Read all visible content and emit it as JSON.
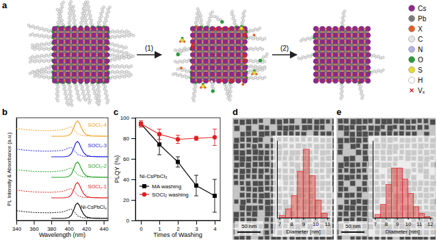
{
  "diagram": {
    "panel_label": "a",
    "steps": [
      "(1)",
      "(2)"
    ],
    "legend": [
      {
        "label": "Cs",
        "color": "#8b2a8b"
      },
      {
        "label": "Pb",
        "color": "#7a7a7a"
      },
      {
        "label": "X",
        "color": "#e0602a"
      },
      {
        "label": "C",
        "color": "#e6e6e6"
      },
      {
        "label": "N",
        "color": "#b4b4e6"
      },
      {
        "label": "O",
        "color": "#2e9a3e"
      },
      {
        "label": "S",
        "color": "#e6dc30"
      },
      {
        "label": "H",
        "color": "#ffffff"
      },
      {
        "label": "Vₓ",
        "color": "#e02020"
      }
    ]
  },
  "chart_data": [
    {
      "type": "line",
      "panel_label": "b",
      "xlabel": "Wavelength (nm)",
      "ylabel": "PL Intensity & Absorbance (a.u.)",
      "xlim": [
        340,
        445
      ],
      "xticks": [
        340,
        360,
        380,
        400,
        420,
        440
      ],
      "ylim": [
        0,
        10
      ],
      "tick_labels": "x",
      "series": [
        {
          "name": "Ni-CsPbCl₃",
          "color": "#000000",
          "abs_x": [
            340,
            350,
            360,
            370,
            380,
            390,
            395,
            400,
            403,
            406,
            410,
            415,
            420,
            430,
            445
          ],
          "abs_values": [
            0.95,
            0.85,
            0.78,
            0.75,
            0.75,
            0.8,
            0.88,
            1.05,
            1.1,
            0.9,
            0.45,
            0.28,
            0.23,
            0.22,
            0.22
          ],
          "pl_x": [
            380,
            395,
            400,
            403,
            406,
            408,
            410,
            412,
            414,
            417,
            420,
            425,
            435,
            445
          ],
          "pl_values": [
            0.2,
            0.2,
            0.28,
            0.5,
            1.1,
            1.55,
            1.7,
            1.5,
            1.1,
            0.6,
            0.35,
            0.24,
            0.21,
            0.2
          ]
        },
        {
          "name": "SOCl₂-1",
          "color": "#e02020",
          "abs_x": [
            340,
            350,
            360,
            370,
            380,
            390,
            395,
            400,
            403,
            406,
            410,
            415,
            420,
            430,
            445
          ],
          "abs_values": [
            2.95,
            2.85,
            2.78,
            2.75,
            2.75,
            2.8,
            2.88,
            3.05,
            3.1,
            2.9,
            2.45,
            2.28,
            2.23,
            2.22,
            2.22
          ],
          "pl_x": [
            380,
            395,
            400,
            403,
            406,
            408,
            410,
            412,
            414,
            417,
            420,
            425,
            435,
            445
          ],
          "pl_values": [
            2.2,
            2.2,
            2.28,
            2.5,
            3.1,
            3.55,
            3.7,
            3.5,
            3.1,
            2.6,
            2.35,
            2.24,
            2.21,
            2.2
          ]
        },
        {
          "name": "SOCl₂-2",
          "color": "#20a020",
          "abs_x": [
            340,
            350,
            360,
            370,
            380,
            390,
            395,
            400,
            403,
            406,
            410,
            415,
            420,
            430,
            445
          ],
          "abs_values": [
            4.95,
            4.85,
            4.78,
            4.75,
            4.75,
            4.8,
            4.88,
            5.05,
            5.1,
            4.9,
            4.45,
            4.28,
            4.23,
            4.22,
            4.22
          ],
          "pl_x": [
            380,
            395,
            400,
            403,
            406,
            408,
            410,
            412,
            414,
            417,
            420,
            425,
            435,
            445
          ],
          "pl_values": [
            4.2,
            4.2,
            4.28,
            4.5,
            5.1,
            5.55,
            5.7,
            5.5,
            5.1,
            4.6,
            4.35,
            4.24,
            4.21,
            4.2
          ]
        },
        {
          "name": "SOCl₂-3",
          "color": "#2020e0",
          "abs_x": [
            340,
            350,
            360,
            370,
            380,
            390,
            395,
            400,
            403,
            406,
            410,
            415,
            420,
            430,
            445
          ],
          "abs_values": [
            6.95,
            6.85,
            6.78,
            6.75,
            6.75,
            6.8,
            6.88,
            7.05,
            7.1,
            6.9,
            6.45,
            6.28,
            6.23,
            6.22,
            6.22
          ],
          "pl_x": [
            380,
            395,
            400,
            403,
            406,
            408,
            410,
            412,
            414,
            417,
            420,
            425,
            435,
            445
          ],
          "pl_values": [
            6.2,
            6.2,
            6.28,
            6.5,
            7.1,
            7.55,
            7.7,
            7.5,
            7.1,
            6.6,
            6.35,
            6.24,
            6.21,
            6.2
          ]
        },
        {
          "name": "SOCl₂-4",
          "color": "#f0a020",
          "abs_x": [
            340,
            350,
            360,
            370,
            380,
            390,
            395,
            400,
            403,
            406,
            410,
            415,
            420,
            430,
            445
          ],
          "abs_values": [
            8.95,
            8.85,
            8.78,
            8.75,
            8.75,
            8.8,
            8.88,
            9.05,
            9.1,
            8.9,
            8.45,
            8.28,
            8.23,
            8.22,
            8.22
          ],
          "pl_x": [
            380,
            395,
            400,
            403,
            406,
            408,
            410,
            412,
            414,
            417,
            420,
            425,
            435,
            445
          ],
          "pl_values": [
            8.2,
            8.2,
            8.28,
            8.5,
            9.1,
            9.55,
            9.7,
            9.5,
            9.1,
            8.6,
            8.35,
            8.24,
            8.21,
            8.2
          ]
        }
      ]
    },
    {
      "type": "line",
      "panel_label": "c",
      "xlabel": "Times of Washing",
      "ylabel": "PLQY (%)",
      "annotations": [
        "Ni-CsPbCl₃"
      ],
      "x": [
        0,
        1,
        2,
        3,
        4
      ],
      "xlim": [
        -0.3,
        4.3
      ],
      "xticks": [
        0,
        1,
        2,
        3,
        4
      ],
      "ylim": [
        0,
        100
      ],
      "yticks": [
        0,
        20,
        40,
        60,
        80,
        100
      ],
      "legend": "lower left",
      "series": [
        {
          "name": "MA washing",
          "color": "#000000",
          "marker": "square",
          "values": [
            94,
            74,
            57,
            34,
            24
          ],
          "errors": [
            3,
            10,
            5,
            10,
            16
          ]
        },
        {
          "name": "SOCl₂ washing",
          "color": "#e02020",
          "marker": "circle",
          "values": [
            94,
            84,
            79,
            80,
            81
          ],
          "errors": [
            3,
            5,
            4,
            2,
            8
          ]
        }
      ]
    },
    {
      "type": "histogram",
      "panel_label": "d",
      "annotations": [
        "50 nm"
      ],
      "xlabel": "Diameter [nm]",
      "bins": [
        7,
        7.5,
        8,
        8.5,
        9,
        9.5,
        10,
        10.5,
        11
      ],
      "values": [
        2,
        8,
        20,
        42,
        62,
        38,
        16,
        4
      ],
      "color": "#e03030",
      "xlim": [
        6.8,
        11.2
      ],
      "xticks": [
        7,
        8,
        9,
        10,
        11
      ],
      "ylim": [
        0,
        70
      ],
      "tick_labels": "x"
    },
    {
      "type": "histogram",
      "panel_label": "e",
      "annotations": [
        "50 nm"
      ],
      "xlabel": "Diameter [nm]",
      "bins": [
        7,
        7.5,
        8,
        8.5,
        9,
        9.5,
        10,
        10.5,
        11,
        11.5,
        12
      ],
      "values": [
        3,
        12,
        30,
        45,
        45,
        35,
        22,
        10,
        4,
        1
      ],
      "color": "#e03030",
      "xlim": [
        6.8,
        12.2
      ],
      "xticks": [
        7,
        8,
        9,
        10,
        11,
        12
      ],
      "ylim": [
        0,
        70
      ],
      "tick_labels": "x"
    }
  ]
}
